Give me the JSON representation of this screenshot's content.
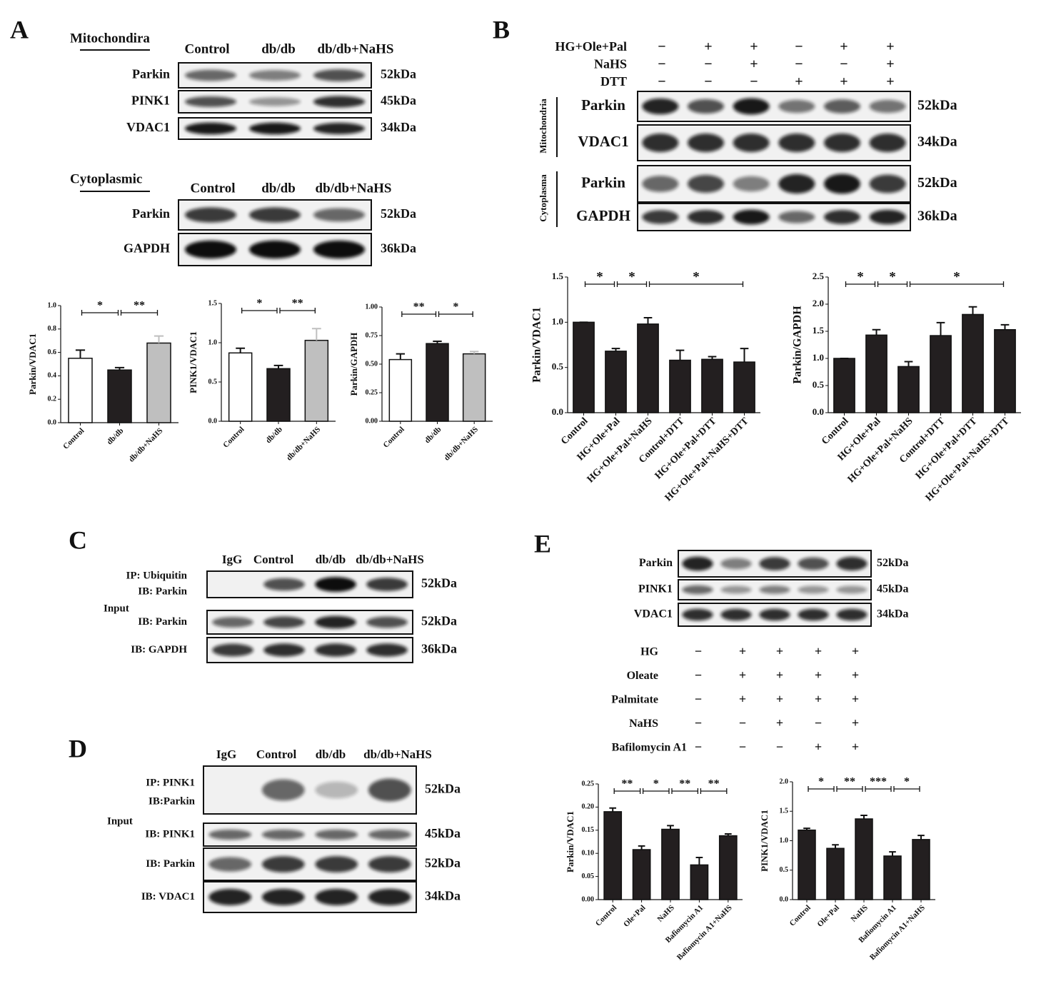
{
  "panels": {
    "A": {
      "label": "A",
      "mito_title": "Mitochondira",
      "mito_lanes": [
        "Control",
        "db/db",
        "db/db+NaHS"
      ],
      "mito_rows": [
        {
          "name": "Parkin",
          "size": "52kDa"
        },
        {
          "name": "PINK1",
          "size": "45kDa"
        },
        {
          "name": "VDAC1",
          "size": "34kDa"
        }
      ],
      "cyto_title": "Cytoplasmic",
      "cyto_lanes": [
        "Control",
        "db/db",
        "db/db+NaHS"
      ],
      "cyto_rows": [
        {
          "name": "Parkin",
          "size": "52kDa"
        },
        {
          "name": "GAPDH",
          "size": "36kDa"
        }
      ]
    },
    "B": {
      "label": "B",
      "conditions": [
        {
          "name": "HG+Ole+Pal",
          "signs": [
            "−",
            "+",
            "+",
            "−",
            "+",
            "+"
          ]
        },
        {
          "name": "NaHS",
          "signs": [
            "−",
            "−",
            "+",
            "−",
            "−",
            "+"
          ]
        },
        {
          "name": "DTT",
          "signs": [
            "−",
            "−",
            "−",
            "+",
            "+",
            "+"
          ]
        }
      ],
      "groups": [
        {
          "name": "Mitochondria",
          "rows": [
            {
              "name": "Parkin",
              "size": "52kDa"
            },
            {
              "name": "VDAC1",
              "size": "34kDa"
            }
          ]
        },
        {
          "name": "Cytoplasma",
          "rows": [
            {
              "name": "Parkin",
              "size": "52kDa"
            },
            {
              "name": "GAPDH",
              "size": "36kDa"
            }
          ]
        }
      ]
    },
    "C": {
      "label": "C",
      "lanes": [
        "IgG",
        "Control",
        "db/db",
        "db/db+NaHS"
      ],
      "ip_rows": [
        {
          "lines": [
            "IP: Ubiquitin",
            "IB: Parkin"
          ],
          "size": "52kDa"
        }
      ],
      "input_label": "Input",
      "input_rows": [
        {
          "name": "IB: Parkin",
          "size": "52kDa"
        },
        {
          "name": "IB: GAPDH",
          "size": "36kDa"
        }
      ]
    },
    "D": {
      "label": "D",
      "lanes": [
        "IgG",
        "Control",
        "db/db",
        "db/db+NaHS"
      ],
      "ip_rows": [
        {
          "lines": [
            "IP: PINK1",
            "IB:Parkin"
          ],
          "size": "52kDa"
        }
      ],
      "input_label": "Input",
      "input_rows": [
        {
          "name": "IB: PINK1",
          "size": "45kDa"
        },
        {
          "name": "IB: Parkin",
          "size": "52kDa"
        },
        {
          "name": "IB: VDAC1",
          "size": "34kDa"
        }
      ]
    },
    "E": {
      "label": "E",
      "rows": [
        {
          "name": "Parkin",
          "size": "52kDa"
        },
        {
          "name": "PINK1",
          "size": "45kDa"
        },
        {
          "name": "VDAC1",
          "size": "34kDa"
        }
      ],
      "conditions": [
        {
          "name": "HG",
          "signs": [
            "−",
            "+",
            "+",
            "+",
            "+"
          ]
        },
        {
          "name": "Oleate",
          "signs": [
            "−",
            "+",
            "+",
            "+",
            "+"
          ]
        },
        {
          "name": "Palmitate",
          "signs": [
            "−",
            "+",
            "+",
            "+",
            "+"
          ]
        },
        {
          "name": "NaHS",
          "signs": [
            "−",
            "−",
            "+",
            "−",
            "+"
          ]
        },
        {
          "name": "Bafilomycin A1",
          "signs": [
            "−",
            "−",
            "−",
            "+",
            "+"
          ]
        }
      ]
    }
  },
  "chart_data": [
    {
      "type": "bar",
      "ylabel": "Parkin/VDAC1",
      "categories": [
        "Control",
        "db/db",
        "db/db+NaHS"
      ],
      "values": [
        0.55,
        0.45,
        0.68
      ],
      "errors": [
        0.07,
        0.02,
        0.06
      ],
      "colors": [
        "#ffffff",
        "#231f20",
        "#bfbfbf"
      ],
      "ylim": [
        0,
        1
      ],
      "yticks": [
        {
          "value": 0,
          "label": "0.0"
        },
        {
          "value": 0.2,
          "label": "0.2"
        },
        {
          "value": 0.4,
          "label": "0.4"
        },
        {
          "value": 0.6,
          "label": "0.6"
        },
        {
          "value": 0.8,
          "label": "0.8"
        },
        {
          "value": 1,
          "label": "1.0"
        }
      ],
      "annotations": [
        "*",
        "**"
      ]
    },
    {
      "type": "bar",
      "ylabel": "PINK1/VDAC1",
      "categories": [
        "Control",
        "db/db",
        "db/db+NaHS"
      ],
      "values": [
        0.87,
        0.67,
        1.03
      ],
      "errors": [
        0.06,
        0.04,
        0.15
      ],
      "colors": [
        "#ffffff",
        "#231f20",
        "#bfbfbf"
      ],
      "ylim": [
        0,
        1.5
      ],
      "yticks": [
        {
          "value": 0,
          "label": "0.0"
        },
        0.5,
        {
          "value": 1,
          "label": "1.0"
        },
        1.5
      ],
      "annotations": [
        "*",
        "**"
      ]
    },
    {
      "type": "bar",
      "ylabel": "Parkin/GAPDH",
      "categories": [
        "Control",
        "db/db",
        "db/db+NaHS"
      ],
      "values": [
        0.54,
        0.68,
        0.59
      ],
      "errors": [
        0.05,
        0.02,
        0.02
      ],
      "colors": [
        "#ffffff",
        "#231f20",
        "#bfbfbf"
      ],
      "ylim": [
        0,
        1
      ],
      "yticks": [
        {
          "value": 0,
          "label": "0.00"
        },
        0.25,
        {
          "value": 0.5,
          "label": "0.50"
        },
        0.75,
        {
          "value": 1,
          "label": "1.00"
        }
      ],
      "annotations": [
        "**",
        "*"
      ]
    },
    {
      "type": "bar",
      "ylabel": "Parkin/VDAC1",
      "categories": [
        "Control",
        "HG+Ole+Pal",
        "HG+Ole+Pal+NaHS",
        "Control+DTT",
        "HG+Ole+Pal+DTT",
        "HG+Ole+Pal+NaHS+DTT"
      ],
      "values": [
        1.0,
        0.68,
        0.98,
        0.58,
        0.59,
        0.56
      ],
      "errors": [
        0,
        0.03,
        0.07,
        0.11,
        0.03,
        0.15
      ],
      "color": "#231f20",
      "ylim": [
        0,
        1.5
      ],
      "yticks": [
        {
          "value": 0,
          "label": "0.0"
        },
        0.5,
        {
          "value": 1,
          "label": "1.0"
        },
        1.5
      ],
      "annotations": [
        "*",
        "*",
        "*"
      ]
    },
    {
      "type": "bar",
      "ylabel": "Parkin/GAPDH",
      "categories": [
        "Control",
        "HG+Ole+Pal",
        "HG+Ole+Pal+NaHS",
        "Control+DTT",
        "HG+Ole+Pal+DTT",
        "HG+Ole+Pal+NaHS+DTT"
      ],
      "values": [
        1.0,
        1.43,
        0.85,
        1.42,
        1.81,
        1.53
      ],
      "errors": [
        0,
        0.1,
        0.09,
        0.24,
        0.14,
        0.09
      ],
      "color": "#231f20",
      "ylim": [
        0,
        2.5
      ],
      "yticks": [
        {
          "value": 0,
          "label": "0.0"
        },
        0.5,
        {
          "value": 1,
          "label": "1.0"
        },
        1.5,
        {
          "value": 2,
          "label": "2.0"
        },
        2.5
      ],
      "annotations": [
        "*",
        "*",
        "*"
      ]
    },
    {
      "type": "bar",
      "ylabel": "Parkin/VDAC1",
      "categories": [
        "Control",
        "Ole+Pal",
        "NaHS",
        "Bafiomycin A1",
        "Bafiomycin A1+NaHS"
      ],
      "values": [
        0.19,
        0.108,
        0.152,
        0.075,
        0.138
      ],
      "errors": [
        0.008,
        0.008,
        0.008,
        0.016,
        0.004
      ],
      "color": "#231f20",
      "ylim": [
        0,
        0.25
      ],
      "yticks": [
        {
          "value": 0,
          "label": "0.00"
        },
        0.05,
        {
          "value": 0.1,
          "label": "0.10"
        },
        0.15,
        {
          "value": 0.2,
          "label": "0.20"
        },
        0.25
      ],
      "annotations": [
        "**",
        "*",
        "**",
        "**"
      ]
    },
    {
      "type": "bar",
      "ylabel": "PINK1/VDAC1",
      "categories": [
        "Control",
        "Ole+Pal",
        "NaHS",
        "Bafiomycin A1",
        "Bafiomycin A1+NaHS"
      ],
      "values": [
        1.18,
        0.87,
        1.37,
        0.74,
        1.02
      ],
      "errors": [
        0.03,
        0.06,
        0.06,
        0.07,
        0.07
      ],
      "color": "#231f20",
      "ylim": [
        0,
        2
      ],
      "yticks": [
        {
          "value": 0,
          "label": "0.0"
        },
        0.5,
        {
          "value": 1,
          "label": "1.0"
        },
        1.5,
        {
          "value": 2,
          "label": "2.0"
        }
      ],
      "annotations": [
        "*",
        "**",
        "***",
        "*"
      ]
    }
  ]
}
